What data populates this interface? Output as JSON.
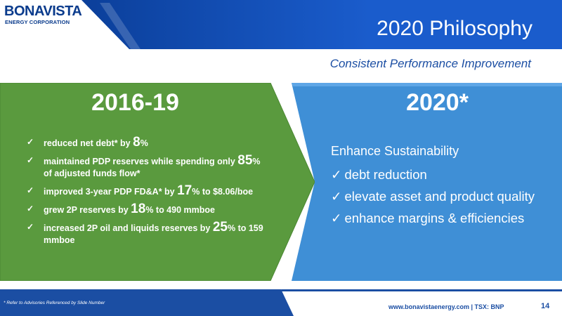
{
  "brand": {
    "logo_main": "BONAVISTA",
    "logo_sub": "ENERGY CORPORATION"
  },
  "slide": {
    "title": "2020 Philosophy",
    "subtitle": "Consistent Performance Improvement"
  },
  "left": {
    "heading": "2016-19",
    "items": [
      {
        "pre": "reduced net debt* by ",
        "big": "8",
        "post": "%"
      },
      {
        "pre": "maintained PDP reserves while spending only ",
        "big": "85",
        "post": "% of adjusted funds flow*"
      },
      {
        "pre": "improved 3-year PDP FD&A* by ",
        "big": "17",
        "post": "% to $8.06/boe"
      },
      {
        "pre": "grew 2P reserves by ",
        "big": "18",
        "post": "% to 490 mmboe"
      },
      {
        "pre": "increased 2P oil and liquids reserves by ",
        "big": "25",
        "post": "% to 159 mmboe"
      }
    ]
  },
  "right": {
    "heading": "2020*",
    "intro": "Enhance Sustainability",
    "items": [
      "debt reduction",
      "elevate asset and product quality",
      "enhance margins & efficiencies"
    ]
  },
  "footer": {
    "footnote": "* Refer to Advisories Referenced by Slide Number",
    "website": "www.bonavistaenergy.com  |  TSX: BNP",
    "page_number": "14"
  },
  "colors": {
    "brand_blue": "#1b4ea3",
    "dark_blue": "#0a3b8c",
    "left_green": "#5a9a3e",
    "right_blue": "#3f8fd6"
  }
}
